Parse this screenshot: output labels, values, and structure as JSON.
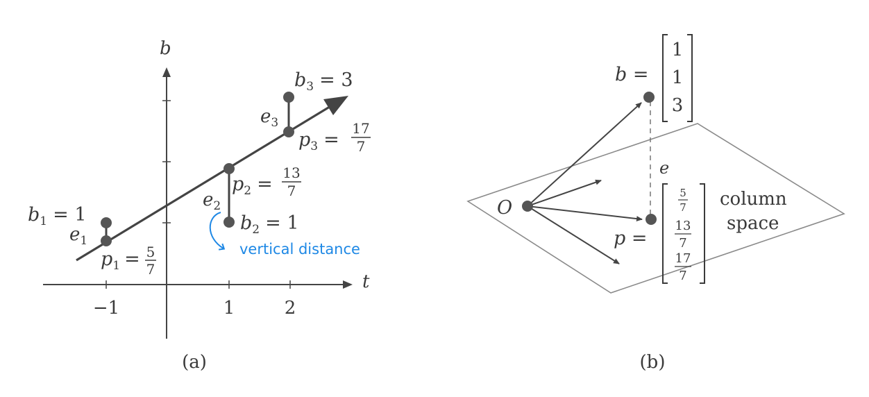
{
  "panel_a": {
    "caption": "(a)",
    "axis_t": "t",
    "axis_b": "b",
    "ticks_t": [
      "−1",
      "1",
      "2"
    ],
    "b1": {
      "var": "b",
      "sub": "1",
      "rhs": "= 1"
    },
    "b2": {
      "var": "b",
      "sub": "2",
      "rhs": "= 1"
    },
    "b3": {
      "var": "b",
      "sub": "3",
      "rhs": "= 3"
    },
    "e1": {
      "var": "e",
      "sub": "1"
    },
    "e2": {
      "var": "e",
      "sub": "2"
    },
    "e3": {
      "var": "e",
      "sub": "3"
    },
    "p1": {
      "var": "p",
      "sub": "1",
      "eq": "=",
      "num": "5",
      "den": "7"
    },
    "p2": {
      "var": "p",
      "sub": "2",
      "eq": "=",
      "num": "13",
      "den": "7"
    },
    "p3": {
      "var": "p",
      "sub": "3",
      "eq": "=",
      "num": "17",
      "den": "7"
    },
    "annotation": "vertical distance",
    "accent": "#1e88e5"
  },
  "panel_b": {
    "caption": "(b)",
    "origin": "O",
    "b_label": "b =",
    "b_vector": [
      "1",
      "1",
      "3"
    ],
    "e_label": "e",
    "p_label": "p =",
    "p_vector": [
      {
        "num": "5",
        "den": "7"
      },
      {
        "num": "13",
        "den": "7"
      },
      {
        "num": "17",
        "den": "7"
      }
    ],
    "plane_label_1": "column",
    "plane_label_2": "space"
  }
}
